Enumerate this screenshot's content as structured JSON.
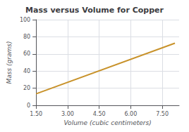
{
  "chart_data": {
    "type": "line",
    "title": "Mass versus Volume for Copper",
    "xlabel": "Volume (cubic centimeters)",
    "ylabel": "Mass (grams)",
    "x": [
      1.5,
      8.1
    ],
    "values": [
      13.44,
      72.57
    ],
    "color": "#C8922A",
    "xlim": [
      1.5,
      8.3
    ],
    "xticks": [
      {
        "value": 1.5,
        "label": "1.50"
      },
      {
        "value": 3.0,
        "label": "3.00"
      },
      {
        "value": 4.5,
        "label": "4.50"
      },
      {
        "value": 6.0,
        "label": "6.00"
      },
      {
        "value": 7.5,
        "label": "7.50"
      }
    ],
    "ylim": [
      0,
      100
    ],
    "yticks": [
      0,
      20,
      40,
      60,
      80,
      100
    ],
    "grid": true
  }
}
